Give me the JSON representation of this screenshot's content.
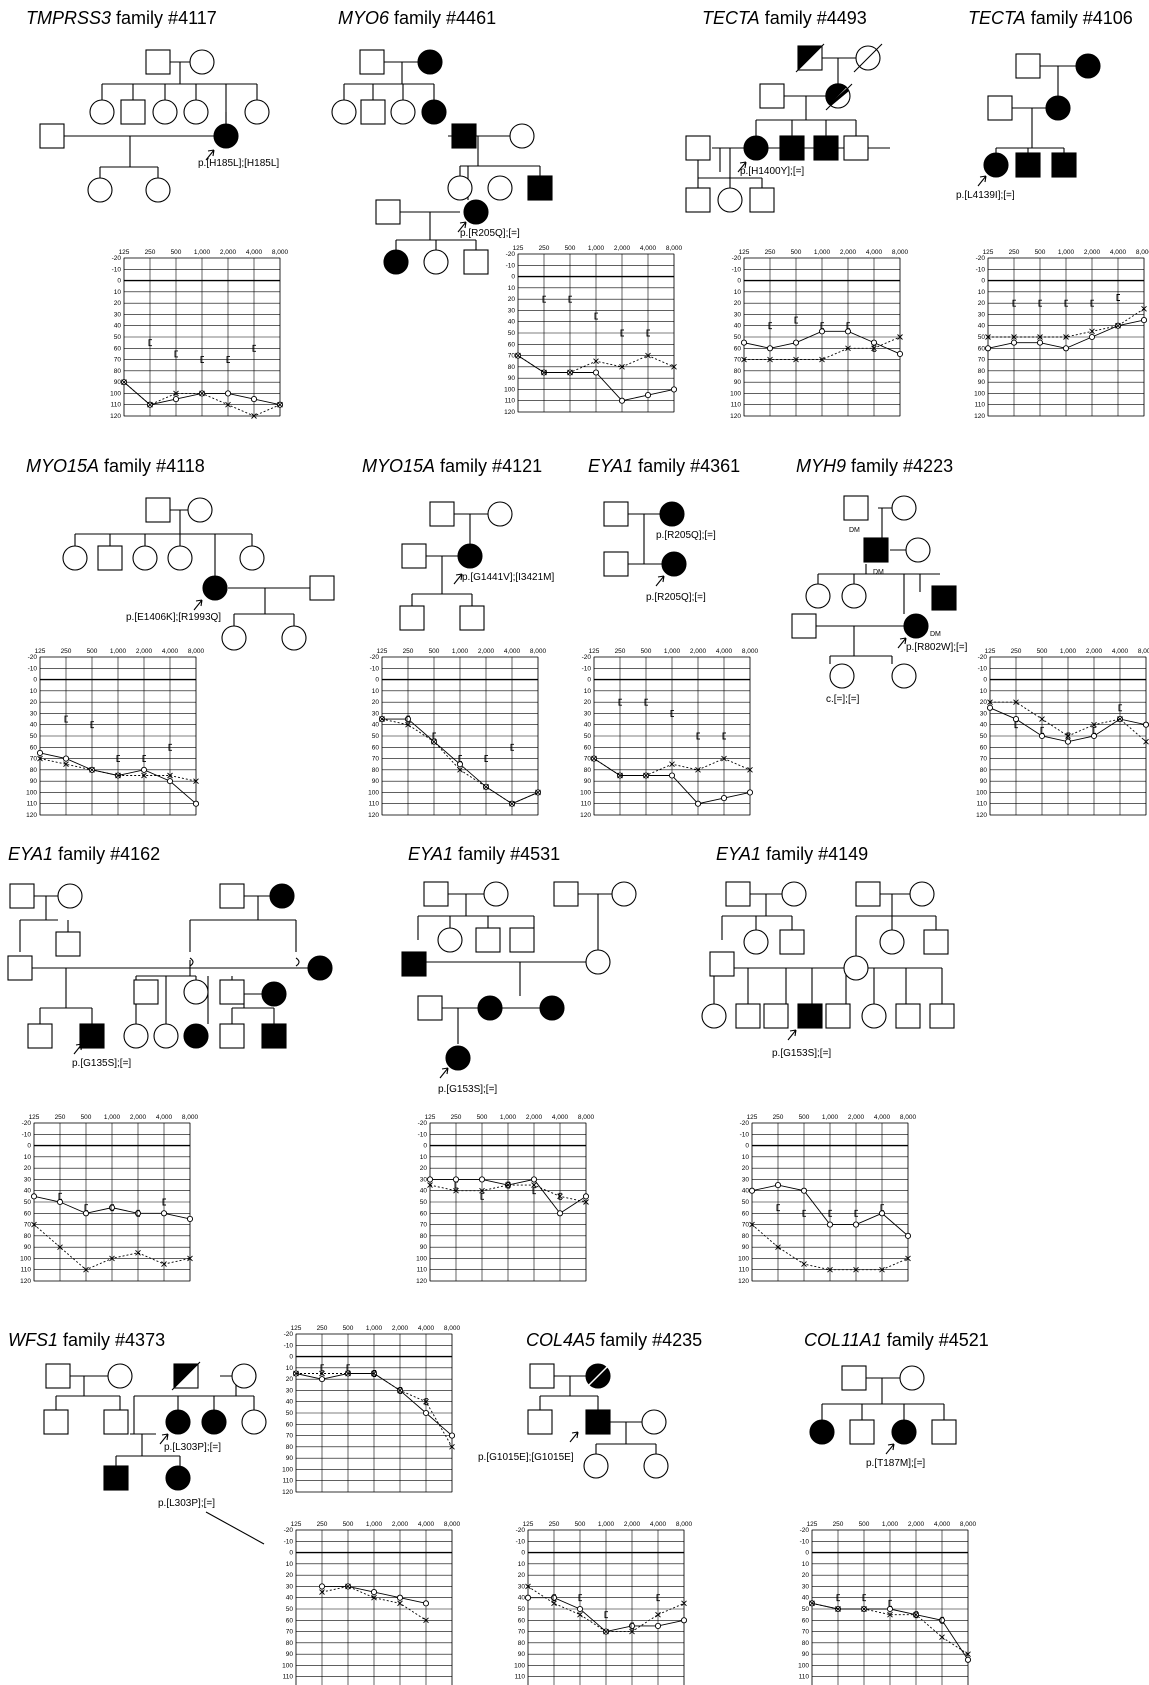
{
  "figure": {
    "panels": [
      {
        "id": "tmprss3",
        "gene": "TMPRSS3",
        "family": "family #4117",
        "variants": [
          "p.[H185L];[H185L]"
        ]
      },
      {
        "id": "myo6",
        "gene": "MYO6",
        "family": "family #4461",
        "variants": [
          "p.[R205Q];[=]"
        ]
      },
      {
        "id": "tecta4493",
        "gene": "TECTA",
        "family": "family #4493",
        "variants": [
          "p.[H1400Y];[=]"
        ]
      },
      {
        "id": "tecta4106",
        "gene": "TECTA",
        "family": "family #4106",
        "variants": [
          "p.[L4139I];[=]"
        ]
      },
      {
        "id": "myo15a4118",
        "gene": "MYO15A",
        "family": "family #4118",
        "variants": [
          "p.[E1406K];[R1993Q]"
        ]
      },
      {
        "id": "myo15a4121",
        "gene": "MYO15A",
        "family": "family #4121",
        "variants": [
          "p.[G1441V];[I3421M]"
        ]
      },
      {
        "id": "eya1_4361",
        "gene": "EYA1",
        "family": "family #4361",
        "variants": [
          "p.[R205Q];[=]",
          "p.[R205Q];[=]"
        ]
      },
      {
        "id": "myh9",
        "gene": "MYH9",
        "family": "family #4223",
        "variants": [
          "p.[R802W];[=]",
          "c.[=];[=]"
        ],
        "notes": [
          "DM",
          "DM",
          "DM"
        ]
      },
      {
        "id": "eya1_4162",
        "gene": "EYA1",
        "family": "family #4162",
        "variants": [
          "p.[G135S];[=]"
        ]
      },
      {
        "id": "eya1_4531",
        "gene": "EYA1",
        "family": "family #4531",
        "variants": [
          "p.[G153S];[=]"
        ]
      },
      {
        "id": "eya1_4149",
        "gene": "EYA1",
        "family": "family #4149",
        "variants": [
          "p.[G153S];[=]"
        ]
      },
      {
        "id": "wfs1",
        "gene": "WFS1",
        "family": "family #4373",
        "variants": [
          "p.[L303P];[=]",
          "p.[L303P];[=]"
        ]
      },
      {
        "id": "col4a5",
        "gene": "COL4A5",
        "family": "family #4235",
        "variants": [
          "p.[G1015E];[G1015E]"
        ]
      },
      {
        "id": "col11a1",
        "gene": "COL11A1",
        "family": "family #4521",
        "variants": [
          "p.[T187M];[=]"
        ]
      }
    ]
  },
  "audiogram_axes": {
    "freq_labels": [
      "125",
      "250",
      "500",
      "1,000",
      "2,000",
      "4,000",
      "8,000"
    ],
    "db_labels": [
      "-20",
      "-10",
      "0",
      "10",
      "20",
      "30",
      "40",
      "50",
      "60",
      "70",
      "80",
      "90",
      "100",
      "110",
      "120"
    ]
  },
  "chart_data": [
    {
      "type": "line",
      "panel": "TMPRSS3 family #4117",
      "x": [
        "125",
        "250",
        "500",
        "1,000",
        "2,000",
        "4,000",
        "8,000"
      ],
      "ylim": [
        120,
        -20
      ],
      "series": [
        {
          "values": [
            90,
            110,
            105,
            100,
            100,
            105,
            110
          ]
        },
        {
          "values": [
            90,
            110,
            100,
            100,
            110,
            120,
            110
          ]
        },
        {
          "values": [
            null,
            55,
            65,
            70,
            70,
            60,
            null
          ]
        }
      ]
    },
    {
      "type": "line",
      "panel": "MYO6 family #4461",
      "x": [
        "125",
        "250",
        "500",
        "1,000",
        "2,000",
        "4,000",
        "8,000"
      ],
      "ylim": [
        120,
        -20
      ],
      "series": [
        {
          "values": [
            70,
            85,
            85,
            85,
            110,
            105,
            100
          ]
        },
        {
          "values": [
            70,
            85,
            85,
            75,
            80,
            70,
            80
          ]
        },
        {
          "values": [
            null,
            20,
            20,
            35,
            50,
            50,
            null
          ]
        }
      ]
    },
    {
      "type": "line",
      "panel": "TECTA family #4493",
      "x": [
        "125",
        "250",
        "500",
        "1,000",
        "2,000",
        "4,000",
        "8,000"
      ],
      "ylim": [
        120,
        -20
      ],
      "series": [
        {
          "values": [
            55,
            60,
            55,
            45,
            45,
            55,
            65
          ]
        },
        {
          "values": [
            70,
            70,
            70,
            70,
            60,
            60,
            50
          ]
        },
        {
          "values": [
            null,
            40,
            35,
            40,
            40,
            60,
            null
          ]
        }
      ]
    },
    {
      "type": "line",
      "panel": "TECTA family #4106",
      "x": [
        "125",
        "250",
        "500",
        "1,000",
        "2,000",
        "4,000",
        "8,000"
      ],
      "ylim": [
        120,
        -20
      ],
      "series": [
        {
          "values": [
            60,
            55,
            55,
            60,
            50,
            40,
            35
          ]
        },
        {
          "values": [
            50,
            50,
            50,
            50,
            45,
            40,
            25
          ]
        },
        {
          "values": [
            null,
            20,
            20,
            20,
            20,
            15,
            null
          ]
        }
      ]
    },
    {
      "type": "line",
      "panel": "MYO15A family #4118",
      "x": [
        "125",
        "250",
        "500",
        "1,000",
        "2,000",
        "4,000",
        "8,000"
      ],
      "ylim": [
        120,
        -20
      ],
      "series": [
        {
          "values": [
            65,
            70,
            80,
            85,
            80,
            90,
            110
          ]
        },
        {
          "values": [
            70,
            75,
            80,
            85,
            85,
            85,
            90
          ]
        },
        {
          "values": [
            null,
            35,
            40,
            70,
            70,
            60,
            null
          ]
        }
      ]
    },
    {
      "type": "line",
      "panel": "MYO15A family #4121",
      "x": [
        "125",
        "250",
        "500",
        "1,000",
        "2,000",
        "4,000",
        "8,000"
      ],
      "ylim": [
        120,
        -20
      ],
      "series": [
        {
          "values": [
            35,
            35,
            55,
            75,
            95,
            110,
            100
          ]
        },
        {
          "values": [
            35,
            40,
            55,
            80,
            95,
            110,
            100
          ]
        },
        {
          "values": [
            null,
            35,
            50,
            70,
            70,
            60,
            null
          ]
        }
      ]
    },
    {
      "type": "line",
      "panel": "EYA1 family #4361",
      "x": [
        "125",
        "250",
        "500",
        "1,000",
        "2,000",
        "4,000",
        "8,000"
      ],
      "ylim": [
        120,
        -20
      ],
      "series": [
        {
          "values": [
            70,
            85,
            85,
            85,
            110,
            105,
            100
          ]
        },
        {
          "values": [
            70,
            85,
            85,
            75,
            80,
            70,
            80
          ]
        },
        {
          "values": [
            null,
            20,
            20,
            30,
            50,
            50,
            null
          ]
        }
      ]
    },
    {
      "type": "line",
      "panel": "MYH9 family #4223",
      "x": [
        "125",
        "250",
        "500",
        "1,000",
        "2,000",
        "4,000",
        "8,000"
      ],
      "ylim": [
        120,
        -20
      ],
      "series": [
        {
          "values": [
            25,
            35,
            50,
            55,
            50,
            35,
            40
          ]
        },
        {
          "values": [
            20,
            20,
            35,
            50,
            40,
            35,
            55
          ]
        },
        {
          "values": [
            null,
            40,
            45,
            50,
            45,
            25,
            null
          ]
        }
      ]
    },
    {
      "type": "line",
      "panel": "EYA1 family #4162",
      "x": [
        "125",
        "250",
        "500",
        "1,000",
        "2,000",
        "4,000",
        "8,000"
      ],
      "ylim": [
        120,
        -20
      ],
      "series": [
        {
          "values": [
            45,
            50,
            60,
            55,
            60,
            60,
            65
          ]
        },
        {
          "values": [
            70,
            90,
            110,
            100,
            95,
            105,
            100
          ]
        },
        {
          "values": [
            null,
            45,
            55,
            55,
            60,
            50,
            null
          ]
        }
      ]
    },
    {
      "type": "line",
      "panel": "EYA1 family #4531",
      "x": [
        "125",
        "250",
        "500",
        "1,000",
        "2,000",
        "4,000",
        "8,000"
      ],
      "ylim": [
        120,
        -20
      ],
      "series": [
        {
          "values": [
            30,
            30,
            30,
            35,
            30,
            60,
            45
          ]
        },
        {
          "values": [
            35,
            40,
            40,
            35,
            35,
            45,
            50
          ]
        },
        {
          "values": [
            null,
            35,
            45,
            35,
            40,
            45,
            null
          ]
        }
      ]
    },
    {
      "type": "line",
      "panel": "EYA1 family #4149",
      "x": [
        "125",
        "250",
        "500",
        "1,000",
        "2,000",
        "4,000",
        "8,000"
      ],
      "ylim": [
        120,
        -20
      ],
      "series": [
        {
          "values": [
            40,
            35,
            40,
            70,
            70,
            60,
            80
          ]
        },
        {
          "values": [
            70,
            90,
            105,
            110,
            110,
            110,
            100
          ]
        },
        {
          "values": [
            null,
            55,
            60,
            60,
            60,
            55,
            null
          ]
        }
      ]
    },
    {
      "type": "line",
      "panel": "WFS1 family #4373",
      "x": [
        "125",
        "250",
        "500",
        "1,000",
        "2,000",
        "4,000",
        "8,000"
      ],
      "ylim": [
        120,
        -20
      ],
      "series": [
        {
          "values": [
            15,
            20,
            15,
            15,
            30,
            50,
            70
          ]
        },
        {
          "values": [
            15,
            15,
            15,
            15,
            30,
            40,
            80
          ]
        },
        {
          "values": [
            null,
            10,
            10,
            15,
            30,
            40,
            null
          ]
        }
      ]
    },
    {
      "type": "line",
      "panel": "WFS1 family #4373 (lower)",
      "x": [
        "125",
        "250",
        "500",
        "1,000",
        "2,000",
        "4,000",
        "8,000"
      ],
      "ylim": [
        120,
        -20
      ],
      "series": [
        {
          "values": [
            null,
            30,
            30,
            35,
            40,
            45,
            null
          ]
        },
        {
          "values": [
            null,
            35,
            30,
            40,
            45,
            60,
            null
          ]
        }
      ]
    },
    {
      "type": "line",
      "panel": "COL4A5 family #4235",
      "x": [
        "125",
        "250",
        "500",
        "1,000",
        "2,000",
        "4,000",
        "8,000"
      ],
      "ylim": [
        120,
        -20
      ],
      "series": [
        {
          "values": [
            40,
            40,
            50,
            70,
            65,
            65,
            60
          ]
        },
        {
          "values": [
            30,
            45,
            55,
            70,
            70,
            55,
            45
          ]
        },
        {
          "values": [
            null,
            40,
            40,
            55,
            65,
            40,
            null
          ]
        }
      ]
    },
    {
      "type": "line",
      "panel": "COL11A1 family #4521",
      "x": [
        "125",
        "250",
        "500",
        "1,000",
        "2,000",
        "4,000",
        "8,000"
      ],
      "ylim": [
        120,
        -20
      ],
      "series": [
        {
          "values": [
            45,
            50,
            50,
            50,
            55,
            60,
            95
          ]
        },
        {
          "values": [
            45,
            50,
            50,
            55,
            55,
            75,
            90
          ]
        },
        {
          "values": [
            null,
            40,
            40,
            45,
            55,
            60,
            null
          ]
        }
      ]
    }
  ]
}
